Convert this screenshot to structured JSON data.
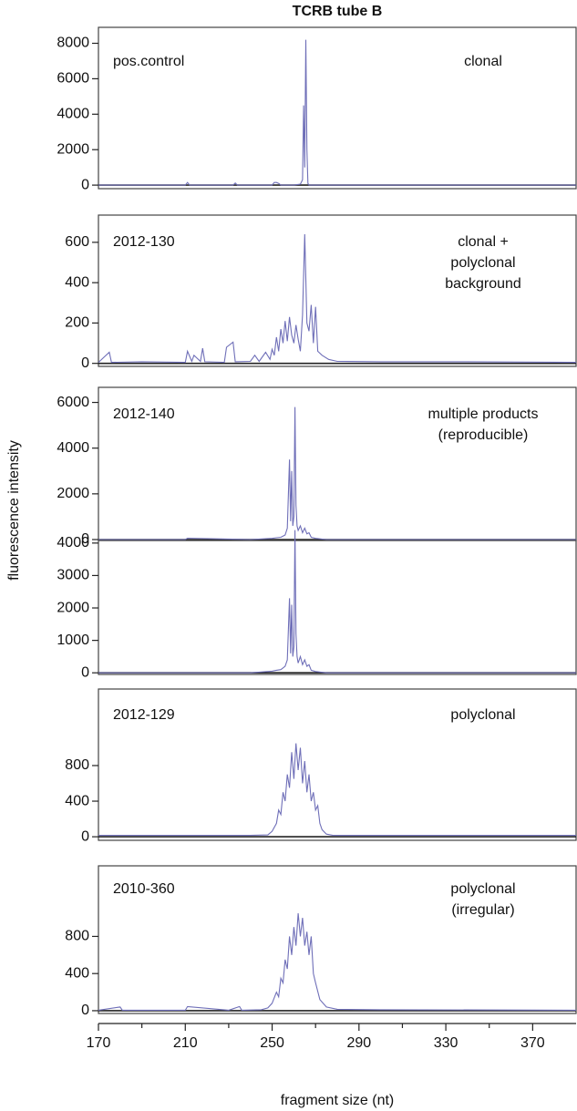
{
  "title": "TCRB tube B",
  "ylabel": "fluorescence intensity",
  "xlabel": "fragment size (nt)",
  "chart_data": [
    {
      "type": "line",
      "label": "pos.control",
      "annotation_right": [
        "clonal"
      ],
      "color": "#6f6fb8",
      "x": [
        170,
        185,
        210,
        211,
        212,
        232,
        233,
        234,
        250,
        251,
        252,
        253,
        254,
        260,
        263,
        264,
        264.5,
        265,
        265.5,
        266,
        266.5,
        267,
        270,
        280,
        300,
        340,
        390
      ],
      "values": [
        0,
        0,
        0,
        150,
        0,
        0,
        120,
        0,
        0,
        150,
        150,
        100,
        0,
        0,
        50,
        300,
        4500,
        1000,
        8200,
        2000,
        100,
        0,
        0,
        0,
        0,
        0,
        0
      ],
      "xlim": [
        170,
        390
      ],
      "ylim": [
        -200,
        8900
      ],
      "yticks": [
        0,
        2000,
        4000,
        6000,
        8000
      ]
    },
    {
      "type": "line",
      "label": "2012-130",
      "annotation_right": [
        "clonal +",
        "polyclonal",
        "background"
      ],
      "color": "#6f6fb8",
      "x": [
        170,
        175,
        176,
        190,
        210,
        211,
        213,
        214,
        217,
        218,
        219,
        228,
        229,
        232,
        233,
        240,
        242,
        244,
        247,
        249,
        250,
        251,
        252,
        253,
        254,
        255,
        256,
        257,
        258,
        259,
        260,
        261,
        262,
        263,
        264,
        265,
        266,
        267,
        268,
        269,
        270,
        271,
        273,
        276,
        280,
        300,
        340,
        390
      ],
      "values": [
        5,
        55,
        5,
        8,
        5,
        60,
        10,
        40,
        10,
        75,
        8,
        5,
        80,
        105,
        8,
        10,
        40,
        10,
        55,
        20,
        70,
        40,
        130,
        60,
        170,
        100,
        210,
        110,
        230,
        140,
        100,
        190,
        120,
        60,
        240,
        640,
        200,
        160,
        290,
        100,
        280,
        60,
        40,
        20,
        10,
        8,
        8,
        5
      ],
      "xlim": [
        170,
        390
      ],
      "ylim": [
        -15,
        735
      ],
      "yticks": [
        0,
        200,
        400,
        600
      ]
    },
    {
      "type": "line",
      "label": "2012-140",
      "annotation_right": [
        "multiple products",
        "(reproducible)"
      ],
      "color": "#6f6fb8",
      "x": [
        170,
        210,
        211,
        240,
        250,
        252,
        254,
        256,
        257,
        258,
        258.5,
        259,
        259.5,
        260,
        260.5,
        261,
        261.5,
        262,
        263,
        264,
        265,
        266,
        267,
        268,
        270,
        275,
        300,
        390
      ],
      "values": [
        0,
        0,
        60,
        0,
        50,
        80,
        100,
        200,
        500,
        3500,
        800,
        3000,
        600,
        1000,
        5800,
        1500,
        600,
        400,
        600,
        300,
        500,
        250,
        300,
        100,
        50,
        0,
        0,
        0
      ],
      "xlim": [
        170,
        390
      ],
      "ylim": [
        -40,
        6660
      ],
      "yticks": [
        0,
        2000,
        4000,
        6000
      ]
    },
    {
      "type": "line",
      "color": "#6f6fb8",
      "x": [
        170,
        210,
        211,
        240,
        250,
        252,
        254,
        256,
        257,
        258,
        258.5,
        259,
        259.5,
        260,
        260.5,
        261,
        261.5,
        262,
        263,
        264,
        265,
        266,
        267,
        268,
        270,
        275,
        300,
        390
      ],
      "values": [
        0,
        0,
        0,
        0,
        50,
        80,
        100,
        200,
        400,
        2300,
        600,
        2100,
        500,
        800,
        4400,
        1200,
        500,
        300,
        500,
        250,
        400,
        200,
        250,
        80,
        40,
        0,
        0,
        0
      ],
      "xlim": [
        170,
        390
      ],
      "ylim": [
        -50,
        4080
      ],
      "yticks": [
        0,
        1000,
        2000,
        3000,
        4000
      ]
    },
    {
      "type": "line",
      "label": "2012-129",
      "annotation_right": [
        "polyclonal"
      ],
      "color": "#6f6fb8",
      "x": [
        170,
        200,
        240,
        248,
        250,
        252,
        253,
        254,
        255,
        256,
        257,
        258,
        259,
        260,
        261,
        262,
        263,
        264,
        265,
        266,
        267,
        268,
        269,
        270,
        271,
        272,
        273,
        275,
        278,
        300,
        390
      ],
      "values": [
        15,
        15,
        15,
        20,
        60,
        150,
        300,
        250,
        500,
        400,
        700,
        550,
        950,
        650,
        1050,
        750,
        1000,
        600,
        850,
        500,
        700,
        400,
        500,
        300,
        350,
        150,
        80,
        30,
        15,
        15,
        15
      ],
      "xlim": [
        170,
        390
      ],
      "ylim": [
        -40,
        1660
      ],
      "yticks": [
        0,
        400,
        800
      ]
    },
    {
      "type": "line",
      "label": "2010-360",
      "annotation_right": [
        "polyclonal",
        "(irregular)"
      ],
      "color": "#6f6fb8",
      "x": [
        170,
        180,
        181,
        200,
        210,
        211,
        230,
        235,
        236,
        245,
        248,
        250,
        252,
        253,
        254,
        255,
        256,
        257,
        258,
        259,
        260,
        261,
        262,
        263,
        264,
        265,
        266,
        267,
        268,
        269,
        270,
        272,
        275,
        280,
        300,
        390
      ],
      "values": [
        5,
        40,
        5,
        5,
        5,
        45,
        5,
        45,
        5,
        10,
        30,
        80,
        200,
        150,
        350,
        300,
        550,
        450,
        800,
        600,
        900,
        700,
        1050,
        800,
        1000,
        700,
        850,
        600,
        800,
        400,
        300,
        120,
        40,
        15,
        10,
        5
      ],
      "xlim": [
        170,
        390
      ],
      "ylim": [
        -30,
        1560
      ],
      "yticks": [
        0,
        400,
        800
      ],
      "xticks": [
        170,
        210,
        250,
        290,
        330,
        370
      ],
      "xminorticks": [
        190,
        230,
        270,
        310,
        350
      ]
    }
  ]
}
